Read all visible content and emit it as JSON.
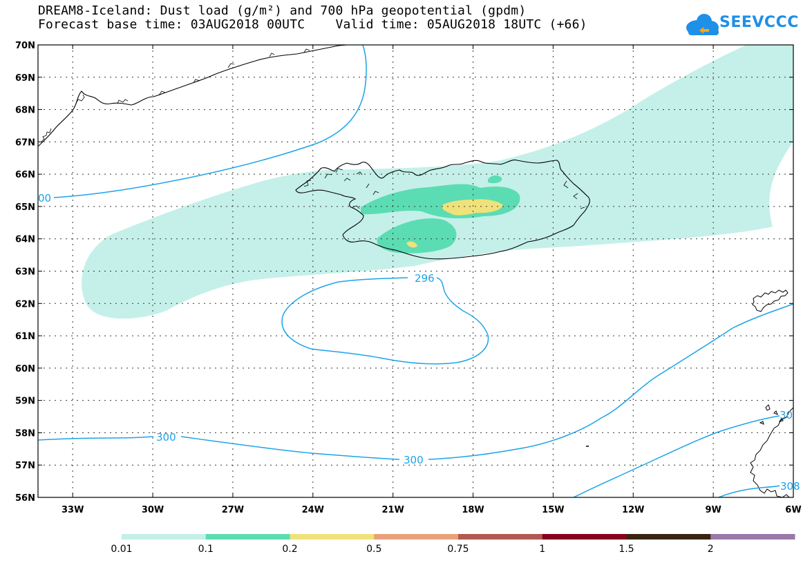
{
  "header": {
    "title_line1": "DREAM8-Iceland: Dust load (g/m²) and 700 hPa geopotential (gpdm)",
    "title_line2": "Forecast base time: 03AUG2018 00UTC    Valid time: 05AUG2018 18UTC (+66)"
  },
  "logo": {
    "text": "SEEVCCC",
    "icon": "cloud-icon",
    "color": "#1e90e8"
  },
  "map": {
    "lat_range": [
      56,
      70
    ],
    "lon_range": [
      -34.3,
      -6
    ],
    "lat_labels": [
      "70N",
      "69N",
      "68N",
      "67N",
      "66N",
      "65N",
      "64N",
      "63N",
      "62N",
      "61N",
      "60N",
      "59N",
      "58N",
      "57N",
      "56N"
    ],
    "lat_values": [
      70,
      69,
      68,
      67,
      66,
      65,
      64,
      63,
      62,
      61,
      60,
      59,
      58,
      57,
      56
    ],
    "lon_labels": [
      "33W",
      "30W",
      "27W",
      "24W",
      "21W",
      "18W",
      "15W",
      "12W",
      "9W",
      "6W"
    ],
    "lon_values": [
      -33,
      -30,
      -27,
      -24,
      -21,
      -18,
      -15,
      -12,
      -9,
      -6
    ],
    "contour_color": "#1ba3e8",
    "contour_labels": [
      "00",
      "296",
      "300",
      "300",
      "30",
      "308"
    ]
  },
  "colorbar": {
    "colors": [
      "#c4f0e9",
      "#5cdcb3",
      "#f0e27a",
      "#e8a27a",
      "#b05a50",
      "#880020",
      "#3a2410",
      "#9a78a8"
    ],
    "labels": [
      "0.01",
      "0.1",
      "0.2",
      "0.5",
      "0.75",
      "1",
      "1.5",
      "2"
    ]
  }
}
